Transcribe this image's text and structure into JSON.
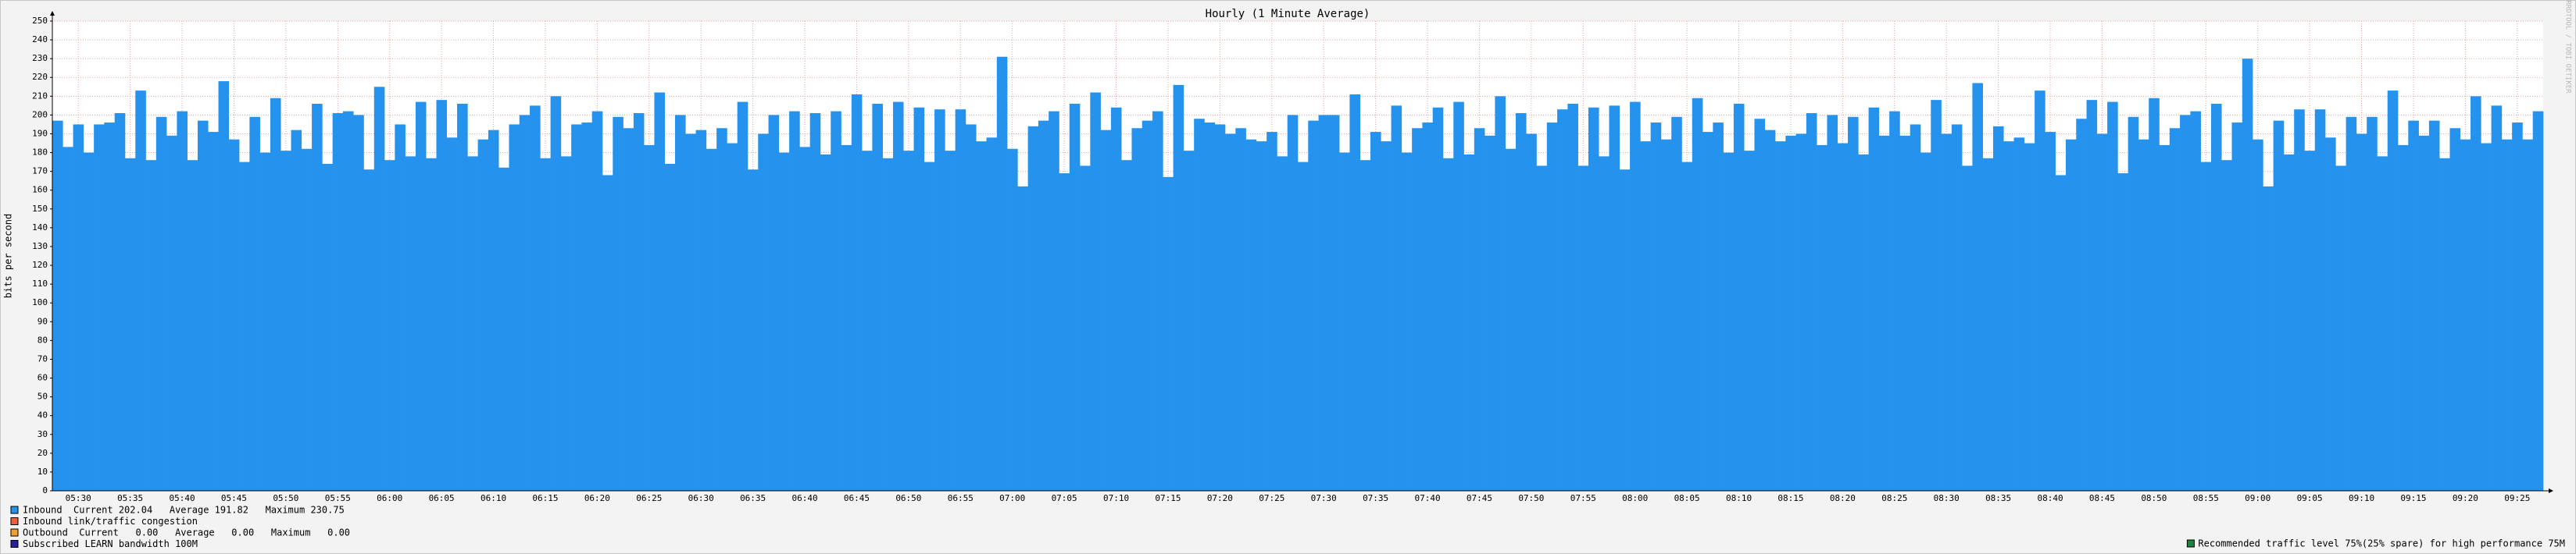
{
  "chart_data": {
    "type": "bar",
    "title": "Hourly (1 Minute Average)",
    "y_label": "bits per second",
    "watermark": "RRDTOOL / TOBI OETIKER",
    "color": "#2592ee",
    "grid": true,
    "ylim": [
      0,
      250
    ],
    "yticks": [
      0,
      10,
      20,
      30,
      40,
      50,
      60,
      70,
      80,
      90,
      100,
      110,
      120,
      130,
      140,
      150,
      160,
      170,
      180,
      190,
      200,
      210,
      220,
      230,
      240,
      250
    ],
    "categories": [
      null,
      null,
      "05:30",
      null,
      null,
      null,
      null,
      "05:35",
      null,
      null,
      null,
      null,
      "05:40",
      null,
      null,
      null,
      null,
      "05:45",
      null,
      null,
      null,
      null,
      "05:50",
      null,
      null,
      null,
      null,
      "05:55",
      null,
      null,
      null,
      null,
      "06:00",
      null,
      null,
      null,
      null,
      "06:05",
      null,
      null,
      null,
      null,
      "06:10",
      null,
      null,
      null,
      null,
      "06:15",
      null,
      null,
      null,
      null,
      "06:20",
      null,
      null,
      null,
      null,
      "06:25",
      null,
      null,
      null,
      null,
      "06:30",
      null,
      null,
      null,
      null,
      "06:35",
      null,
      null,
      null,
      null,
      "06:40",
      null,
      null,
      null,
      null,
      "06:45",
      null,
      null,
      null,
      null,
      "06:50",
      null,
      null,
      null,
      null,
      "06:55",
      null,
      null,
      null,
      null,
      "07:00",
      null,
      null,
      null,
      null,
      "07:05",
      null,
      null,
      null,
      null,
      "07:10",
      null,
      null,
      null,
      null,
      "07:15",
      null,
      null,
      null,
      null,
      "07:20",
      null,
      null,
      null,
      null,
      "07:25",
      null,
      null,
      null,
      null,
      "07:30",
      null,
      null,
      null,
      null,
      "07:35",
      null,
      null,
      null,
      null,
      "07:40",
      null,
      null,
      null,
      null,
      "07:45",
      null,
      null,
      null,
      null,
      "07:50",
      null,
      null,
      null,
      null,
      "07:55",
      null,
      null,
      null,
      null,
      "08:00",
      null,
      null,
      null,
      null,
      "08:05",
      null,
      null,
      null,
      null,
      "08:10",
      null,
      null,
      null,
      null,
      "08:15",
      null,
      null,
      null,
      null,
      "08:20",
      null,
      null,
      null,
      null,
      "08:25",
      null,
      null,
      null,
      null,
      "08:30",
      null,
      null,
      null,
      null,
      "08:35",
      null,
      null,
      null,
      null,
      "08:40",
      null,
      null,
      null,
      null,
      "08:45",
      null,
      null,
      null,
      null,
      "08:50",
      null,
      null,
      null,
      null,
      "08:55",
      null,
      null,
      null,
      null,
      "09:00",
      null,
      null,
      null,
      null,
      "09:05",
      null,
      null,
      null,
      null,
      "09:10",
      null,
      null,
      null,
      null,
      "09:15",
      null,
      null,
      null,
      null,
      "09:20",
      null,
      null,
      null,
      null,
      "09:25",
      null,
      null
    ],
    "values": [
      197,
      183,
      195,
      180,
      195,
      196,
      201,
      177,
      213,
      176,
      199,
      189,
      202,
      176,
      197,
      191,
      218,
      187,
      175,
      199,
      180,
      209,
      181,
      192,
      182,
      206,
      174,
      201,
      202,
      200,
      171,
      215,
      176,
      195,
      178,
      207,
      177,
      208,
      188,
      206,
      178,
      187,
      192,
      172,
      195,
      200,
      205,
      177,
      210,
      178,
      195,
      196,
      202,
      168,
      199,
      193,
      201,
      184,
      212,
      174,
      200,
      190,
      192,
      182,
      193,
      185,
      207,
      171,
      190,
      200,
      180,
      202,
      183,
      201,
      179,
      202,
      184,
      211,
      181,
      206,
      177,
      207,
      181,
      204,
      175,
      203,
      181,
      203,
      195,
      186,
      188,
      231,
      182,
      162,
      194,
      197,
      202,
      169,
      206,
      173,
      212,
      192,
      204,
      176,
      193,
      197,
      202,
      167,
      216,
      181,
      198,
      196,
      195,
      190,
      193,
      187,
      186,
      191,
      178,
      200,
      175,
      197,
      200,
      200,
      180,
      211,
      176,
      191,
      186,
      205,
      180,
      193,
      196,
      204,
      177,
      207,
      179,
      193,
      189,
      210,
      182,
      201,
      190,
      173,
      196,
      203,
      206,
      173,
      204,
      178,
      205,
      171,
      207,
      186,
      196,
      187,
      199,
      175,
      209,
      191,
      196,
      180,
      206,
      181,
      198,
      192,
      186,
      189,
      190,
      201,
      184,
      200,
      185,
      199,
      179,
      204,
      189,
      202,
      189,
      195,
      180,
      208,
      190,
      195,
      173,
      217,
      177,
      194,
      186,
      188,
      185,
      213,
      191,
      168,
      187,
      198,
      208,
      190,
      207,
      169,
      199,
      187,
      209,
      184,
      193,
      200,
      202,
      175,
      206,
      176,
      196,
      230,
      187,
      162,
      197,
      179,
      203,
      181,
      203,
      188,
      173,
      199,
      190,
      199,
      178,
      213,
      184,
      197,
      189,
      197,
      177,
      193,
      187,
      210,
      185,
      205,
      187,
      196,
      187,
      202
    ],
    "legend": [
      {
        "label": "Inbound  Current 202.04   Average 191.82   Maximum 230.75",
        "color": "#2592ee"
      },
      {
        "label": "Inbound link/traffic congestion",
        "color": "#e8603c"
      },
      {
        "label": "Outbound  Current   0.00   Average   0.00   Maximum   0.00",
        "color": "#f0a030"
      },
      {
        "label": "Subscribed LEARN bandwidth 100M",
        "color": "#2020a0"
      }
    ],
    "note": {
      "label": "Recommended traffic level 75%(25% spare) for high performance 75M",
      "color": "#208040"
    }
  }
}
